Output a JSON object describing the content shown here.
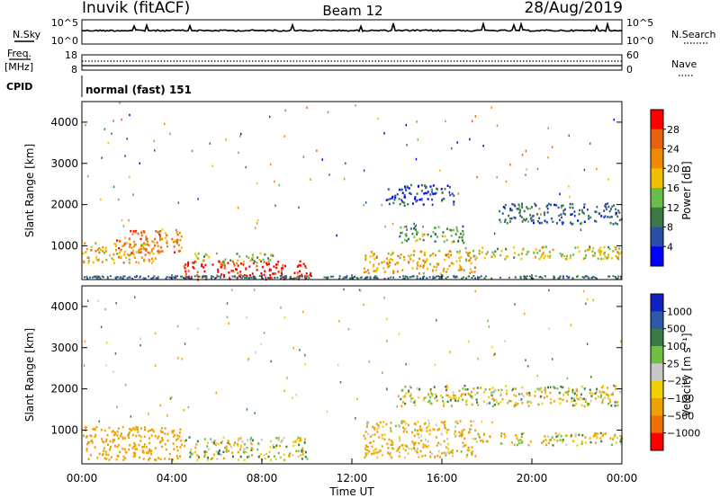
{
  "header": {
    "station": "Inuvik (fitACF)",
    "beam": "Beam 12",
    "date": "28/Aug/2019"
  },
  "noise_panel": {
    "left_label": "N.Sky",
    "right_label": "N.Search",
    "left_ticks": [
      "10^5",
      "10^0"
    ],
    "right_ticks": [
      "10^5",
      "10^0"
    ]
  },
  "freq_panel": {
    "left_label_1": "Freq.",
    "left_label_2": "[MHz]",
    "right_label": "Nave",
    "left_ticks": [
      "18",
      "8"
    ],
    "right_ticks": [
      "60",
      "0"
    ]
  },
  "cpid": {
    "label": "CPID",
    "value": "normal (fast) 151"
  },
  "power_panel": {
    "ylabel": "Slant Range [km]",
    "colorbar_label": "Power [dB]",
    "colorbar_ticks": [
      "28",
      "24",
      "20",
      "16",
      "12",
      "8",
      "4"
    ],
    "colors": [
      "#0000ff",
      "#2a4fa8",
      "#3a7a44",
      "#69bd4a",
      "#f0c000",
      "#f08a00",
      "#e86010",
      "#ff0000"
    ]
  },
  "velocity_panel": {
    "ylabel": "Slant Range [km]",
    "colorbar_label": "Velocity [m s⁻¹]",
    "colorbar_ticks": [
      "1000",
      "500",
      "100",
      "25",
      "−25",
      "−100",
      "−500",
      "−1000"
    ],
    "colors": [
      "#ff0000",
      "#f07000",
      "#f0a000",
      "#f0d000",
      "#c8c8c8",
      "#6ec040",
      "#3a7a44",
      "#2a5aa8",
      "#1020c0"
    ]
  },
  "xaxis": {
    "label": "Time UT",
    "ticks": [
      "00:00",
      "04:00",
      "08:00",
      "12:00",
      "16:00",
      "20:00",
      "00:00"
    ]
  },
  "chart_data": {
    "type": "heatmap",
    "title": "Inuvik (fitACF) Beam 12 28/Aug/2019",
    "xlabel": "Time UT",
    "ylabel": "Slant Range [km]",
    "xlim": [
      "00:00",
      "24:00"
    ],
    "ylim": [
      180,
      4500
    ],
    "yticks": [
      1000,
      2000,
      3000,
      4000
    ],
    "power": {
      "unit": "dB",
      "range": [
        0,
        32
      ],
      "regions": [
        {
          "t0": 0.0,
          "t1": 3.5,
          "r0": 600,
          "r1": 1100,
          "level": 20
        },
        {
          "t0": 1.5,
          "t1": 4.5,
          "r0": 850,
          "r1": 1400,
          "level": 24
        },
        {
          "t0": 4.5,
          "t1": 10.2,
          "r0": 200,
          "r1": 650,
          "level": 30
        },
        {
          "t0": 5.0,
          "t1": 8.5,
          "r0": 600,
          "r1": 850,
          "level": 14
        },
        {
          "t0": 12.5,
          "t1": 17.5,
          "r0": 350,
          "r1": 900,
          "level": 20
        },
        {
          "t0": 14.0,
          "t1": 17.0,
          "r0": 1100,
          "r1": 1500,
          "level": 12
        },
        {
          "t0": 17.0,
          "t1": 24.0,
          "r0": 700,
          "r1": 1000,
          "level": 16
        },
        {
          "t0": 18.5,
          "t1": 24.0,
          "r0": 1550,
          "r1": 2050,
          "level": 8
        },
        {
          "t0": 13.5,
          "t1": 16.5,
          "r0": 2000,
          "r1": 2500,
          "level": 6
        }
      ]
    },
    "velocity": {
      "unit": "m s-1",
      "range": [
        -1000,
        1000
      ],
      "regions": [
        {
          "t0": 0.0,
          "t1": 4.5,
          "r0": 300,
          "r1": 1100,
          "value": -300
        },
        {
          "t0": 4.5,
          "t1": 10.0,
          "r0": 300,
          "r1": 850,
          "value": 0
        },
        {
          "t0": 12.5,
          "t1": 17.5,
          "r0": 350,
          "r1": 1250,
          "value": -150
        },
        {
          "t0": 14.0,
          "t1": 24.0,
          "r0": 1600,
          "r1": 2100,
          "value": 0
        },
        {
          "t0": 17.5,
          "t1": 24.0,
          "r0": 650,
          "r1": 950,
          "value": -60
        }
      ]
    }
  }
}
